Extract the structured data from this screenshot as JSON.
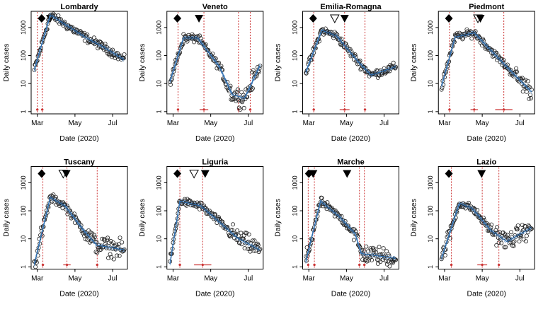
{
  "figure": {
    "y_ticks": [
      "1",
      "10",
      "100",
      "1000"
    ],
    "x_ticks": [
      "Mar",
      "May",
      "Jul"
    ],
    "colors": {
      "points": "#222222",
      "fit": "#2f6fb0",
      "change": "#cc3333",
      "marker": "#000000"
    }
  },
  "chart_data": [
    {
      "type": "scatter",
      "title": "Lombardy",
      "xlabel": "Date (2020)",
      "ylabel": "Daily cases",
      "y_scale": "log",
      "ylim": [
        1,
        3000
      ],
      "x_range": [
        "2020-02-20",
        "2020-07-25"
      ],
      "x_ticks": [
        "Mar",
        "May",
        "Jul"
      ],
      "curve": [
        [
          "2020-02-25",
          30
        ],
        [
          "2020-03-22",
          2800
        ],
        [
          "2020-04-20",
          1100
        ],
        [
          "2020-05-20",
          420
        ],
        [
          "2020-06-20",
          180
        ],
        [
          "2020-07-20",
          70
        ]
      ],
      "change_points": [
        "2020-03-01",
        "2020-03-09"
      ],
      "markers": [
        {
          "date": "2020-03-08",
          "kind": "filled"
        },
        {
          "date": "2020-03-22",
          "kind": "filled"
        }
      ],
      "intervals": [
        {
          "date": "2020-03-01",
          "half_days": 2
        },
        {
          "date": "2020-03-09",
          "half_days": 2
        }
      ]
    },
    {
      "type": "scatter",
      "title": "Veneto",
      "xlabel": "Date (2020)",
      "ylabel": "Daily cases",
      "y_scale": "log",
      "ylim": [
        1,
        3000
      ],
      "x_range": [
        "2020-02-20",
        "2020-07-25"
      ],
      "x_ticks": [
        "Mar",
        "May",
        "Jul"
      ],
      "curve": [
        [
          "2020-02-25",
          12
        ],
        [
          "2020-03-18",
          420
        ],
        [
          "2020-04-10",
          420
        ],
        [
          "2020-05-15",
          40
        ],
        [
          "2020-06-05",
          4
        ],
        [
          "2020-06-25",
          3
        ],
        [
          "2020-07-20",
          45
        ]
      ],
      "change_points": [
        "2020-03-09",
        "2020-04-20",
        "2020-06-15",
        "2020-07-04"
      ],
      "markers": [
        {
          "date": "2020-03-08",
          "kind": "filled"
        },
        {
          "date": "2020-04-12",
          "kind": "filled"
        }
      ],
      "intervals": [
        {
          "date": "2020-03-09",
          "half_days": 2
        },
        {
          "date": "2020-04-20",
          "half_days": 7
        },
        {
          "date": "2020-06-15",
          "half_days": 2
        },
        {
          "date": "2020-07-04",
          "half_days": 2
        }
      ]
    },
    {
      "type": "scatter",
      "title": "Emilia-Romagna",
      "xlabel": "Date (2020)",
      "ylabel": "Daily cases",
      "y_scale": "log",
      "ylim": [
        1,
        3000
      ],
      "x_range": [
        "2020-02-20",
        "2020-07-25"
      ],
      "x_ticks": [
        "Mar",
        "May",
        "Jul"
      ],
      "curve": [
        [
          "2020-02-25",
          25
        ],
        [
          "2020-03-22",
          800
        ],
        [
          "2020-04-15",
          500
        ],
        [
          "2020-05-20",
          60
        ],
        [
          "2020-06-10",
          20
        ],
        [
          "2020-07-20",
          40
        ]
      ],
      "change_points": [
        "2020-03-09",
        "2020-04-28",
        "2020-05-31"
      ],
      "markers": [
        {
          "date": "2020-03-08",
          "kind": "filled"
        },
        {
          "date": "2020-04-12",
          "kind": "open"
        },
        {
          "date": "2020-04-28",
          "kind": "filled"
        }
      ],
      "intervals": [
        {
          "date": "2020-03-09",
          "half_days": 2
        },
        {
          "date": "2020-04-28",
          "half_days": 8
        },
        {
          "date": "2020-05-31",
          "half_days": 2
        }
      ]
    },
    {
      "type": "scatter",
      "title": "Piedmont",
      "xlabel": "Date (2020)",
      "ylabel": "Daily cases",
      "y_scale": "log",
      "ylim": [
        1,
        3000
      ],
      "x_range": [
        "2020-02-20",
        "2020-07-25"
      ],
      "x_ticks": [
        "Mar",
        "May",
        "Jul"
      ],
      "curve": [
        [
          "2020-02-25",
          8
        ],
        [
          "2020-03-18",
          450
        ],
        [
          "2020-04-18",
          650
        ],
        [
          "2020-05-25",
          90
        ],
        [
          "2020-06-25",
          18
        ],
        [
          "2020-07-20",
          5
        ]
      ],
      "change_points": [
        "2020-03-09",
        "2020-04-18",
        "2020-06-05"
      ],
      "markers": [
        {
          "date": "2020-03-08",
          "kind": "filled"
        },
        {
          "date": "2020-04-24",
          "kind": "open"
        },
        {
          "date": "2020-04-28",
          "kind": "filled"
        }
      ],
      "intervals": [
        {
          "date": "2020-03-09",
          "half_days": 2
        },
        {
          "date": "2020-04-18",
          "half_days": 6
        },
        {
          "date": "2020-06-05",
          "half_days": 14
        }
      ]
    },
    {
      "type": "scatter",
      "title": "Tuscany",
      "xlabel": "Date (2020)",
      "ylabel": "Daily cases",
      "y_scale": "log",
      "ylim": [
        1,
        3000
      ],
      "x_range": [
        "2020-02-20",
        "2020-07-25"
      ],
      "x_ticks": [
        "Mar",
        "May",
        "Jul"
      ],
      "curve": [
        [
          "2020-02-25",
          1.2
        ],
        [
          "2020-03-22",
          300
        ],
        [
          "2020-04-15",
          150
        ],
        [
          "2020-05-15",
          20
        ],
        [
          "2020-06-05",
          6
        ],
        [
          "2020-07-20",
          4
        ]
      ],
      "change_points": [
        "2020-03-10",
        "2020-04-18",
        "2020-06-06"
      ],
      "markers": [
        {
          "date": "2020-03-08",
          "kind": "filled"
        },
        {
          "date": "2020-04-12",
          "kind": "open"
        },
        {
          "date": "2020-04-17",
          "kind": "filled"
        }
      ],
      "intervals": [
        {
          "date": "2020-03-10",
          "half_days": 2
        },
        {
          "date": "2020-04-18",
          "half_days": 6
        },
        {
          "date": "2020-06-06",
          "half_days": 2
        }
      ]
    },
    {
      "type": "scatter",
      "title": "Liguria",
      "xlabel": "Date (2020)",
      "ylabel": "Daily cases",
      "y_scale": "log",
      "ylim": [
        1,
        3000
      ],
      "x_range": [
        "2020-02-20",
        "2020-07-25"
      ],
      "x_ticks": [
        "Mar",
        "May",
        "Jul"
      ],
      "curve": [
        [
          "2020-02-25",
          1.3
        ],
        [
          "2020-03-12",
          220
        ],
        [
          "2020-04-15",
          150
        ],
        [
          "2020-05-15",
          40
        ],
        [
          "2020-06-15",
          10
        ],
        [
          "2020-07-20",
          4
        ]
      ],
      "change_points": [
        "2020-03-12",
        "2020-04-18"
      ],
      "markers": [
        {
          "date": "2020-03-08",
          "kind": "filled"
        },
        {
          "date": "2020-04-04",
          "kind": "open"
        },
        {
          "date": "2020-04-22",
          "kind": "filled"
        }
      ],
      "intervals": [
        {
          "date": "2020-03-12",
          "half_days": 2
        },
        {
          "date": "2020-04-18",
          "half_days": 14
        }
      ]
    },
    {
      "type": "scatter",
      "title": "Marche",
      "xlabel": "Date (2020)",
      "ylabel": "Daily cases",
      "y_scale": "log",
      "ylim": [
        1,
        3000
      ],
      "x_range": [
        "2020-02-20",
        "2020-07-25"
      ],
      "x_ticks": [
        "Mar",
        "May",
        "Jul"
      ],
      "curve": [
        [
          "2020-02-25",
          1.5
        ],
        [
          "2020-03-20",
          220
        ],
        [
          "2020-04-20",
          60
        ],
        [
          "2020-05-15",
          15
        ],
        [
          "2020-05-25",
          3
        ],
        [
          "2020-07-20",
          2
        ]
      ],
      "change_points": [
        "2020-02-29",
        "2020-03-10",
        "2020-05-22",
        "2020-05-30"
      ],
      "markers": [
        {
          "date": "2020-03-01",
          "kind": "filled"
        },
        {
          "date": "2020-03-08",
          "kind": "filled"
        },
        {
          "date": "2020-05-02",
          "kind": "filled"
        }
      ],
      "intervals": [
        {
          "date": "2020-02-29",
          "half_days": 1
        },
        {
          "date": "2020-03-10",
          "half_days": 2
        },
        {
          "date": "2020-05-22",
          "half_days": 2
        },
        {
          "date": "2020-05-30",
          "half_days": 2
        }
      ]
    },
    {
      "type": "scatter",
      "title": "Lazio",
      "xlabel": "Date (2020)",
      "ylabel": "Daily cases",
      "y_scale": "log",
      "ylim": [
        1,
        3000
      ],
      "x_range": [
        "2020-02-20",
        "2020-07-25"
      ],
      "x_ticks": [
        "Mar",
        "May",
        "Jul"
      ],
      "curve": [
        [
          "2020-02-25",
          2
        ],
        [
          "2020-03-25",
          190
        ],
        [
          "2020-04-15",
          120
        ],
        [
          "2020-05-15",
          20
        ],
        [
          "2020-06-10",
          8
        ],
        [
          "2020-07-20",
          25
        ]
      ],
      "change_points": [
        "2020-03-12",
        "2020-05-01",
        "2020-05-28"
      ],
      "markers": [
        {
          "date": "2020-03-08",
          "kind": "filled"
        },
        {
          "date": "2020-04-30",
          "kind": "filled"
        }
      ],
      "intervals": [
        {
          "date": "2020-03-12",
          "half_days": 2
        },
        {
          "date": "2020-05-01",
          "half_days": 8
        },
        {
          "date": "2020-05-28",
          "half_days": 2
        }
      ]
    }
  ]
}
